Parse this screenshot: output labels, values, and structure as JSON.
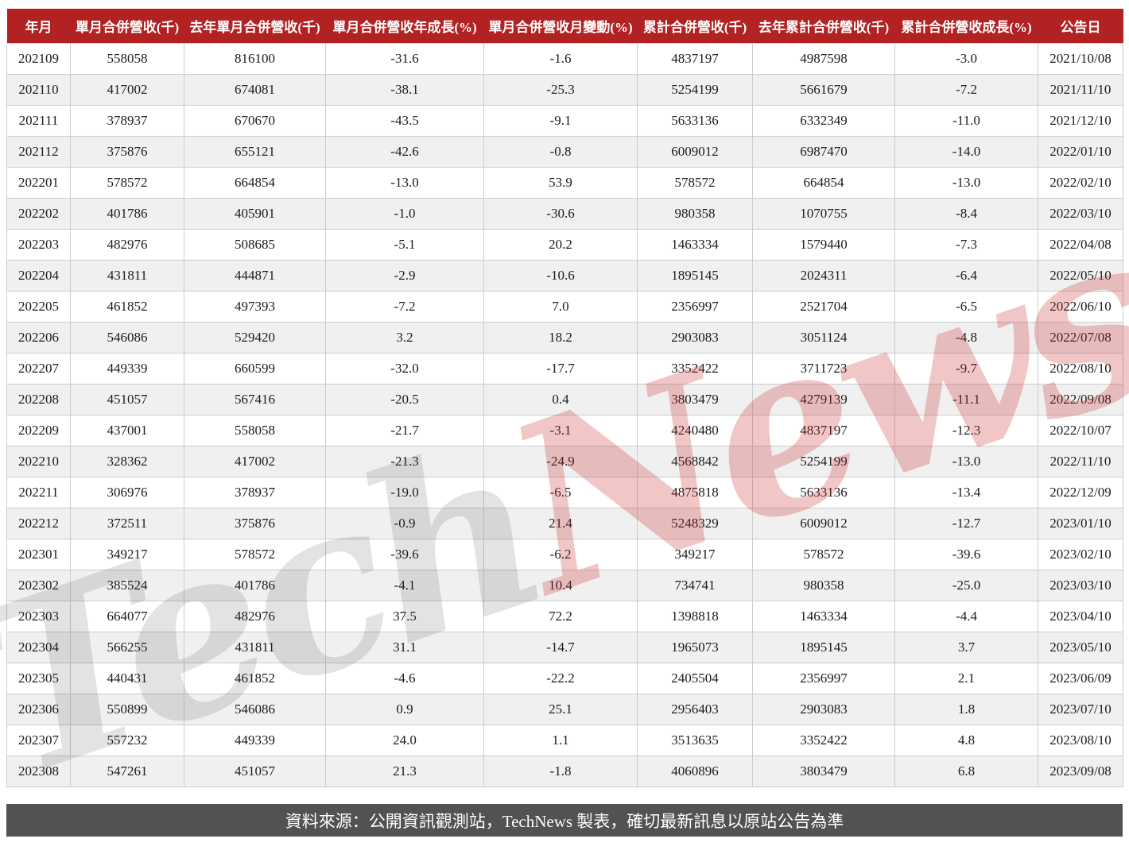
{
  "chart_data": {
    "type": "table",
    "columns": [
      "年月",
      "單月合併營收(千)",
      "去年單月合併營收(千)",
      "單月合併營收年成長(%)",
      "單月合併營收月變動(%)",
      "累計合併營收(千)",
      "去年累計合併營收(千)",
      "累計合併營收成長(%)",
      "公告日"
    ],
    "rows": [
      [
        "202109",
        "558058",
        "816100",
        "-31.6",
        "-1.6",
        "4837197",
        "4987598",
        "-3.0",
        "2021/10/08"
      ],
      [
        "202110",
        "417002",
        "674081",
        "-38.1",
        "-25.3",
        "5254199",
        "5661679",
        "-7.2",
        "2021/11/10"
      ],
      [
        "202111",
        "378937",
        "670670",
        "-43.5",
        "-9.1",
        "5633136",
        "6332349",
        "-11.0",
        "2021/12/10"
      ],
      [
        "202112",
        "375876",
        "655121",
        "-42.6",
        "-0.8",
        "6009012",
        "6987470",
        "-14.0",
        "2022/01/10"
      ],
      [
        "202201",
        "578572",
        "664854",
        "-13.0",
        "53.9",
        "578572",
        "664854",
        "-13.0",
        "2022/02/10"
      ],
      [
        "202202",
        "401786",
        "405901",
        "-1.0",
        "-30.6",
        "980358",
        "1070755",
        "-8.4",
        "2022/03/10"
      ],
      [
        "202203",
        "482976",
        "508685",
        "-5.1",
        "20.2",
        "1463334",
        "1579440",
        "-7.3",
        "2022/04/08"
      ],
      [
        "202204",
        "431811",
        "444871",
        "-2.9",
        "-10.6",
        "1895145",
        "2024311",
        "-6.4",
        "2022/05/10"
      ],
      [
        "202205",
        "461852",
        "497393",
        "-7.2",
        "7.0",
        "2356997",
        "2521704",
        "-6.5",
        "2022/06/10"
      ],
      [
        "202206",
        "546086",
        "529420",
        "3.2",
        "18.2",
        "2903083",
        "3051124",
        "-4.8",
        "2022/07/08"
      ],
      [
        "202207",
        "449339",
        "660599",
        "-32.0",
        "-17.7",
        "3352422",
        "3711723",
        "-9.7",
        "2022/08/10"
      ],
      [
        "202208",
        "451057",
        "567416",
        "-20.5",
        "0.4",
        "3803479",
        "4279139",
        "-11.1",
        "2022/09/08"
      ],
      [
        "202209",
        "437001",
        "558058",
        "-21.7",
        "-3.1",
        "4240480",
        "4837197",
        "-12.3",
        "2022/10/07"
      ],
      [
        "202210",
        "328362",
        "417002",
        "-21.3",
        "-24.9",
        "4568842",
        "5254199",
        "-13.0",
        "2022/11/10"
      ],
      [
        "202211",
        "306976",
        "378937",
        "-19.0",
        "-6.5",
        "4875818",
        "5633136",
        "-13.4",
        "2022/12/09"
      ],
      [
        "202212",
        "372511",
        "375876",
        "-0.9",
        "21.4",
        "5248329",
        "6009012",
        "-12.7",
        "2023/01/10"
      ],
      [
        "202301",
        "349217",
        "578572",
        "-39.6",
        "-6.2",
        "349217",
        "578572",
        "-39.6",
        "2023/02/10"
      ],
      [
        "202302",
        "385524",
        "401786",
        "-4.1",
        "10.4",
        "734741",
        "980358",
        "-25.0",
        "2023/03/10"
      ],
      [
        "202303",
        "664077",
        "482976",
        "37.5",
        "72.2",
        "1398818",
        "1463334",
        "-4.4",
        "2023/04/10"
      ],
      [
        "202304",
        "566255",
        "431811",
        "31.1",
        "-14.7",
        "1965073",
        "1895145",
        "3.7",
        "2023/05/10"
      ],
      [
        "202305",
        "440431",
        "461852",
        "-4.6",
        "-22.2",
        "2405504",
        "2356997",
        "2.1",
        "2023/06/09"
      ],
      [
        "202306",
        "550899",
        "546086",
        "0.9",
        "25.1",
        "2956403",
        "2903083",
        "1.8",
        "2023/07/10"
      ],
      [
        "202307",
        "557232",
        "449339",
        "24.0",
        "1.1",
        "3513635",
        "3352422",
        "4.8",
        "2023/08/10"
      ],
      [
        "202308",
        "547261",
        "451057",
        "21.3",
        "-1.8",
        "4060896",
        "3803479",
        "6.8",
        "2023/09/08"
      ]
    ]
  },
  "watermark": {
    "part1": "Tech",
    "part2": "News"
  },
  "footer": {
    "text": "資料來源：公開資訊觀測站，TechNews 製表，確切最新訊息以原站公告為準"
  },
  "colors": {
    "header_bg": "#b22222",
    "stripe_bg": "#f0f0f0",
    "cell_border": "#cccccc",
    "footer_bg": "#525252",
    "watermark_gray": "#e3e3e3",
    "watermark_pink": "#f0c2c2"
  }
}
